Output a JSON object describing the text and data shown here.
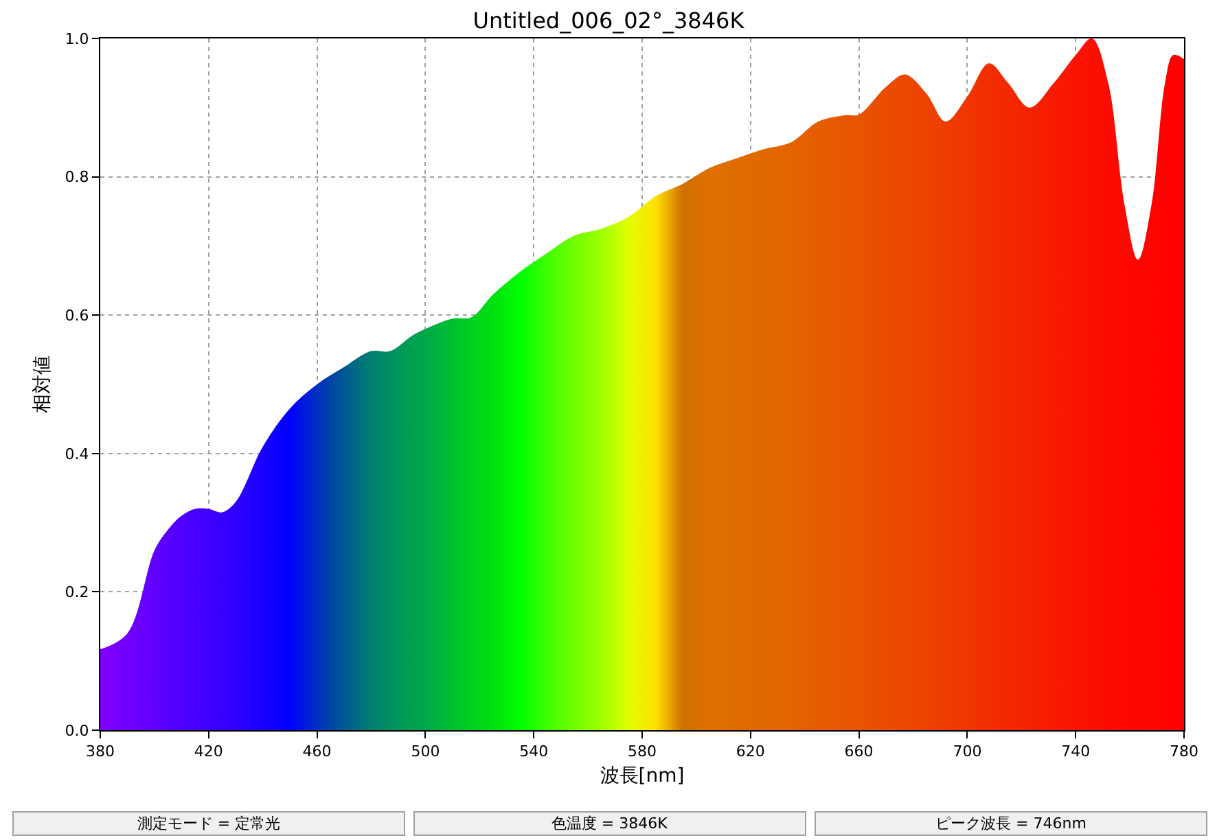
{
  "chart_data": {
    "type": "area",
    "title": "Untitled_006_02°_3846K",
    "xlabel": "波長[nm]",
    "ylabel": "相対値",
    "x": [
      380,
      390,
      400,
      405,
      410,
      415,
      420,
      425,
      430,
      440,
      450,
      460,
      470,
      480,
      487,
      495,
      500,
      510,
      517,
      525,
      535,
      545,
      555,
      565,
      575,
      585,
      595,
      605,
      615,
      625,
      635,
      645,
      655,
      660,
      670,
      677,
      685,
      692,
      700,
      708,
      715,
      723,
      732,
      740,
      746,
      752,
      758,
      763,
      768,
      773,
      776,
      780
    ],
    "series": [
      {
        "values": [
          0.117,
          0.14,
          0.26,
          0.29,
          0.31,
          0.32,
          0.32,
          0.315,
          0.33,
          0.41,
          0.465,
          0.5,
          0.525,
          0.548,
          0.548,
          0.57,
          0.58,
          0.595,
          0.597,
          0.63,
          0.663,
          0.69,
          0.715,
          0.725,
          0.742,
          0.772,
          0.79,
          0.813,
          0.827,
          0.84,
          0.85,
          0.88,
          0.889,
          0.89,
          0.93,
          0.948,
          0.92,
          0.88,
          0.916,
          0.964,
          0.936,
          0.9,
          0.936,
          0.976,
          1.0,
          0.936,
          0.76,
          0.68,
          0.76,
          0.936,
          0.976,
          0.97
        ],
        "colors": [
          "#8000ff",
          "#7000ff",
          "#6000ff",
          "#5800ff",
          "#5000ff",
          "#4800ff",
          "#4000ff",
          "#3800ff",
          "#3000ff",
          "#1800ff",
          "#0000ff",
          "#0030c0",
          "#005890",
          "#008070",
          "#009060",
          "#00a050",
          "#00a848",
          "#00c030",
          "#00d020",
          "#00e010",
          "#00ff00",
          "#40ff00",
          "#70ff00",
          "#a0ff00",
          "#e0ff00",
          "#ffe000",
          "#d07000",
          "#e07000",
          "#e06c00",
          "#e06800",
          "#e46400",
          "#e65c00",
          "#e85600",
          "#e85400",
          "#ea4c00",
          "#ec4800",
          "#ee4200",
          "#ef3c00",
          "#f03600",
          "#f22e00",
          "#f42800",
          "#f52200",
          "#f81a00",
          "#fa1400",
          "#fb1000",
          "#fc0c00",
          "#fd0800",
          "#fe0600",
          "#fe0400",
          "#ff0200",
          "#ff0100",
          "#ff0000"
        ]
      }
    ],
    "xlim": [
      380,
      780
    ],
    "xticks": [
      380,
      420,
      460,
      500,
      540,
      580,
      620,
      660,
      700,
      740,
      780
    ],
    "ylim": [
      0,
      1.0
    ],
    "yticks": [
      {
        "value": 0,
        "label": "0.0"
      },
      0.2,
      0.4,
      0.6,
      0.8,
      {
        "value": 1.0,
        "label": "1.0"
      }
    ],
    "grid": true,
    "annotations": [
      "測定モード = 定常光",
      "色温度 = 3846K",
      "ピーク波長 = 746nm"
    ]
  }
}
